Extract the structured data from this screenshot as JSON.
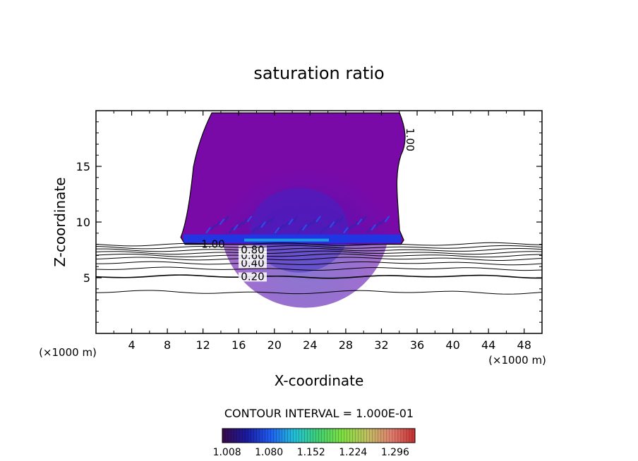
{
  "chart_data": {
    "type": "contour",
    "title": "saturation ratio",
    "xlabel": "X-coordinate",
    "ylabel": "Z-coordinate",
    "x_unit": "(×1000 m)",
    "xlim": [
      0,
      50
    ],
    "ylim": [
      0,
      20
    ],
    "x_ticks": [
      4,
      8,
      12,
      16,
      20,
      24,
      28,
      32,
      36,
      40,
      44,
      48
    ],
    "y_ticks": [
      5,
      10,
      15
    ],
    "grid": false,
    "contour_interval_text": "CONTOUR INTERVAL = 1.000E-01",
    "contour_lines": [
      {
        "level": 0.2,
        "label": "0.20",
        "z": 5.1
      },
      {
        "level": 0.3,
        "label": "",
        "z": 5.8
      },
      {
        "level": 0.4,
        "label": "0.40",
        "z": 6.3
      },
      {
        "level": 0.5,
        "label": "",
        "z": 6.7
      },
      {
        "level": 0.6,
        "label": "0.60",
        "z": 7.0
      },
      {
        "level": 0.7,
        "label": "",
        "z": 7.25
      },
      {
        "level": 0.8,
        "label": "0.80",
        "z": 7.5
      },
      {
        "level": 0.9,
        "label": "",
        "z": 7.75
      },
      {
        "level": 1.0,
        "label": "1.00",
        "z": 8.0
      }
    ],
    "low_line_z": 3.7,
    "cloud_region": {
      "level": 1.0,
      "label": "1.00",
      "x_range": [
        9.5,
        34.5
      ],
      "z_range": [
        8.0,
        19.8
      ]
    },
    "colorbar": {
      "tick_labels": [
        "1.008",
        "1.080",
        "1.152",
        "1.224",
        "1.296"
      ],
      "range": [
        1.0,
        1.33
      ],
      "colors": [
        "#3a0a4a",
        "#1a1aa0",
        "#1e5ef0",
        "#22c0d8",
        "#40d070",
        "#80e040",
        "#c0c060",
        "#e08070",
        "#c83030"
      ]
    }
  }
}
